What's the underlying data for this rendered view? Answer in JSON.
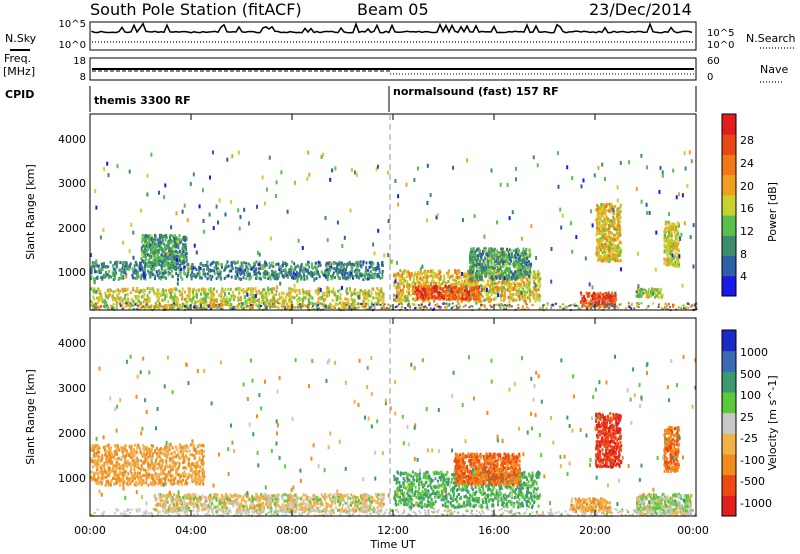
{
  "header": {
    "station": "South Pole Station (fitACF)",
    "beam": "Beam 05",
    "date": "23/Dec/2014"
  },
  "summary_panels": {
    "nsky_label": "N.Sky",
    "nsky_ticks": [
      "10^5",
      "10^0"
    ],
    "nsearch_label": "N.Search",
    "nsearch_ticks": [
      "10^5",
      "10^0"
    ],
    "freq_label_1": "Freq.",
    "freq_label_2": "[MHz]",
    "freq_ticks": [
      "18",
      "8"
    ],
    "nave_label": "Nave",
    "nave_ticks": [
      "60",
      "0"
    ],
    "cpid_label": "CPID",
    "cpid_1": "themis 3300 RF",
    "cpid_2": "normalsound (fast) 157 RF"
  },
  "colors": {
    "power": [
      "#1a1ae6",
      "#2e5ea6",
      "#3f8c6a",
      "#58c04a",
      "#c8d22c",
      "#f0a020",
      "#f07818",
      "#e84818",
      "#e01e1e"
    ],
    "velocity": [
      "#e01e1e",
      "#f04a14",
      "#f08c1e",
      "#f2b24a",
      "#c8c8c8",
      "#5cc83c",
      "#3c9a6e",
      "#3a6ab4",
      "#1a2ac8"
    ]
  },
  "chart_data": [
    {
      "type": "heatmap",
      "panel": "power",
      "ylabel": "Slant Range [km]",
      "ylim": [
        180,
        4600
      ],
      "y_ticks": [
        "1000",
        "2000",
        "3000",
        "4000"
      ],
      "xlim": [
        0,
        24
      ],
      "colorbar_label": "Power [dB]",
      "colorbar_ticks": [
        "4",
        "8",
        "12",
        "16",
        "20",
        "24",
        "28"
      ],
      "colorbar_range": [
        0,
        32
      ],
      "regions": [
        {
          "x": [
            0.0,
            11.6
          ],
          "y": [
            900,
            1300
          ],
          "value": 8
        },
        {
          "x": [
            0.0,
            11.6
          ],
          "y": [
            250,
            700
          ],
          "value": 16
        },
        {
          "x": [
            2.0,
            3.8
          ],
          "y": [
            1200,
            1900
          ],
          "value": 10
        },
        {
          "x": [
            12.0,
            17.8
          ],
          "y": [
            400,
            1100
          ],
          "value": 18
        },
        {
          "x": [
            12.8,
            15.4
          ],
          "y": [
            450,
            750
          ],
          "value": 26
        },
        {
          "x": [
            15.0,
            17.4
          ],
          "y": [
            900,
            1600
          ],
          "value": 10
        },
        {
          "x": [
            19.4,
            20.8
          ],
          "y": [
            250,
            600
          ],
          "value": 28
        },
        {
          "x": [
            20.0,
            21.0
          ],
          "y": [
            1300,
            2600
          ],
          "value": 18
        },
        {
          "x": [
            21.6,
            22.6
          ],
          "y": [
            500,
            700
          ],
          "value": 14
        },
        {
          "x": [
            22.7,
            23.3
          ],
          "y": [
            1200,
            2200
          ],
          "value": 16
        }
      ]
    },
    {
      "type": "heatmap",
      "panel": "velocity",
      "ylabel": "Slant Range [km]",
      "ylim": [
        180,
        4600
      ],
      "y_ticks": [
        "1000",
        "2000",
        "3000",
        "4000"
      ],
      "xlim": [
        0,
        24
      ],
      "xlabel": "Time UT",
      "x_ticks": [
        "00:00",
        "04:00",
        "08:00",
        "12:00",
        "16:00",
        "20:00",
        "00:00"
      ],
      "colorbar_label": "Velocity [m s^-1]",
      "colorbar_ticks": [
        "-1000",
        "-500",
        "-100",
        "-25",
        "25",
        "100",
        "500",
        "1000"
      ],
      "regions": [
        {
          "x": [
            0.0,
            4.5
          ],
          "y": [
            900,
            1800
          ],
          "value": -100
        },
        {
          "x": [
            2.5,
            11.6
          ],
          "y": [
            300,
            700
          ],
          "value": -25
        },
        {
          "x": [
            12.0,
            17.8
          ],
          "y": [
            400,
            1200
          ],
          "value": 100
        },
        {
          "x": [
            14.4,
            17.0
          ],
          "y": [
            900,
            1600
          ],
          "value": -500
        },
        {
          "x": [
            19.0,
            20.6
          ],
          "y": [
            300,
            600
          ],
          "value": -100
        },
        {
          "x": [
            20.0,
            21.0
          ],
          "y": [
            1300,
            2500
          ],
          "value": -1000
        },
        {
          "x": [
            21.6,
            23.8
          ],
          "y": [
            250,
            700
          ],
          "value": 25
        },
        {
          "x": [
            22.7,
            23.3
          ],
          "y": [
            1200,
            2200
          ],
          "value": -500
        }
      ]
    }
  ]
}
